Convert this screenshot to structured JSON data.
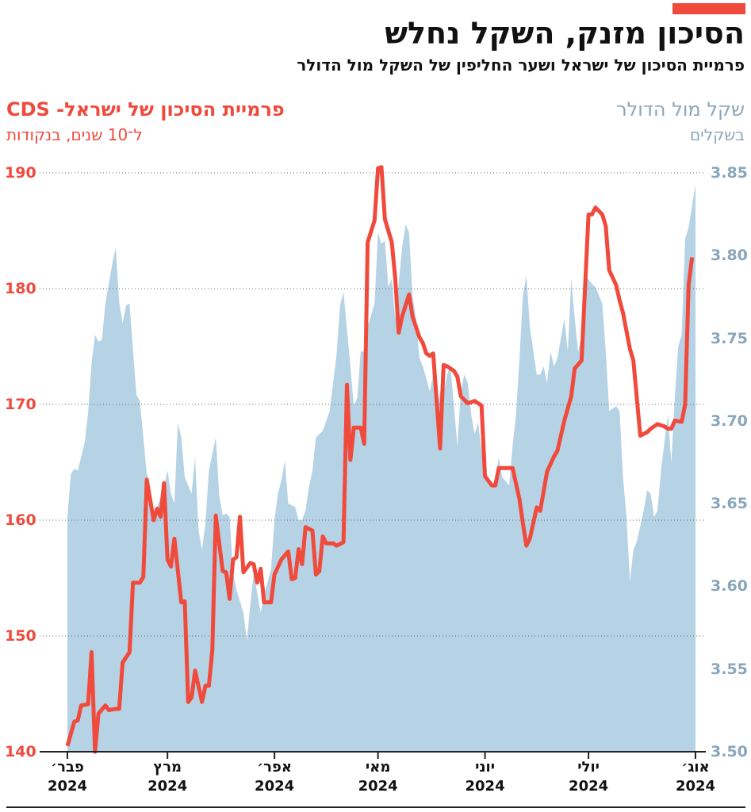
{
  "chart_data": {
    "type": "line",
    "title": "הסיכון מזנק, השקל נחלש",
    "subtitle": "פרמיית הסיכון של ישראל ושער החליפין של השקל מול הדולר",
    "ylabel": "ל־10 שנים, בנקודות",
    "y2label": "בשקלים",
    "xlim": [
      0,
      182
    ],
    "xticks": [
      {
        "value": 0,
        "label": "פבר׳ 2024"
      },
      {
        "value": 29,
        "label": "מרץ 2024"
      },
      {
        "value": 60,
        "label": "אפר׳ 2024"
      },
      {
        "value": 90,
        "label": "מאי 2024"
      },
      {
        "value": 121,
        "label": "יוני 2024"
      },
      {
        "value": 151,
        "label": "יולי 2024"
      },
      {
        "value": 182,
        "label": "אוג׳ 2024"
      }
    ],
    "ylim": [
      140,
      190
    ],
    "yticks": [
      140,
      150,
      160,
      170,
      180,
      190
    ],
    "y2lim": [
      3.5,
      3.85
    ],
    "y2ticks": [
      {
        "value": 3.5,
        "label": "3.50"
      },
      3.55,
      {
        "value": 3.6,
        "label": "3.60"
      },
      3.65,
      {
        "value": 3.7,
        "label": "3.70"
      },
      3.75,
      {
        "value": 3.8,
        "label": "3.80"
      },
      3.85
    ],
    "grid": true,
    "series": [
      {
        "name": "שקל מול הדולר",
        "type": "area",
        "axis": "y2",
        "color": "#b5d3e5",
        "label_color": "#8aa6ba",
        "x": [
          0,
          1,
          2,
          3,
          5,
          6,
          7,
          8,
          9,
          10,
          11,
          13,
          14,
          15,
          16,
          17,
          18,
          20,
          21,
          22,
          23,
          24,
          25,
          26,
          28,
          29,
          30,
          31,
          32,
          33,
          34,
          36,
          37,
          38,
          39,
          40,
          41,
          43,
          44,
          45,
          46,
          47,
          48,
          49,
          51,
          52,
          53,
          54,
          55,
          56,
          57,
          59,
          60,
          61,
          62,
          63,
          64,
          66,
          67,
          68,
          69,
          70,
          71,
          72,
          74,
          75,
          76,
          77,
          78,
          79,
          80,
          82,
          83,
          84,
          85,
          86,
          87,
          89,
          90,
          91,
          92,
          93,
          94,
          95,
          97,
          98,
          99,
          100,
          101,
          102,
          103,
          105,
          106,
          107,
          108,
          109,
          110,
          111,
          113,
          114,
          115,
          116,
          117,
          118,
          119,
          121,
          122,
          123,
          124,
          125,
          126,
          128,
          129,
          130,
          131,
          132,
          133,
          134,
          136,
          137,
          138,
          139,
          140,
          141,
          142,
          144,
          145,
          146,
          147,
          148,
          149,
          150,
          152,
          153,
          154,
          155,
          156,
          157,
          159,
          160,
          161,
          162,
          163,
          164,
          165,
          167,
          168,
          169,
          170,
          171,
          172,
          174,
          175,
          176,
          177,
          178,
          179,
          180,
          182
        ],
        "values": [
          3.642,
          3.668,
          3.671,
          3.67,
          3.687,
          3.705,
          3.735,
          3.752,
          3.748,
          3.749,
          3.771,
          3.795,
          3.805,
          3.772,
          3.759,
          3.77,
          3.771,
          3.716,
          3.712,
          3.69,
          3.668,
          3.66,
          3.639,
          3.648,
          3.66,
          3.67,
          3.656,
          3.65,
          3.699,
          3.69,
          3.666,
          3.656,
          3.678,
          3.634,
          3.622,
          3.638,
          3.67,
          3.69,
          3.655,
          3.643,
          3.644,
          3.642,
          3.608,
          3.598,
          3.584,
          3.567,
          3.589,
          3.608,
          3.596,
          3.584,
          3.595,
          3.61,
          3.64,
          3.656,
          3.664,
          3.676,
          3.65,
          3.648,
          3.64,
          3.64,
          3.646,
          3.66,
          3.67,
          3.69,
          3.694,
          3.7,
          3.706,
          3.723,
          3.74,
          3.77,
          3.778,
          3.733,
          3.709,
          3.714,
          3.742,
          3.742,
          3.757,
          3.771,
          3.814,
          3.807,
          3.809,
          3.781,
          3.786,
          3.762,
          3.805,
          3.819,
          3.814,
          3.776,
          3.762,
          3.738,
          3.733,
          3.718,
          3.728,
          3.704,
          3.718,
          3.716,
          3.728,
          3.733,
          3.685,
          3.718,
          3.728,
          3.723,
          3.704,
          3.692,
          3.699,
          3.666,
          3.666,
          3.661,
          3.666,
          3.678,
          3.666,
          3.661,
          3.685,
          3.704,
          3.738,
          3.776,
          3.788,
          3.757,
          3.728,
          3.728,
          3.733,
          3.723,
          3.742,
          3.733,
          3.738,
          3.762,
          3.742,
          3.786,
          3.762,
          3.742,
          3.752,
          3.788,
          3.783,
          3.781,
          3.776,
          3.771,
          3.742,
          3.706,
          3.709,
          3.706,
          3.666,
          3.642,
          3.603,
          3.622,
          3.627,
          3.646,
          3.658,
          3.656,
          3.642,
          3.646,
          3.67,
          3.704,
          3.675,
          3.714,
          3.745,
          3.752,
          3.81,
          3.817,
          3.843
        ]
      },
      {
        "name": "פרמיית הסיכון של ישראל- CDS",
        "type": "line",
        "axis": "y",
        "color": "#f04a3c",
        "label_color": "#f04a3c",
        "x": [
          0,
          2,
          3,
          4,
          6,
          7,
          8,
          9,
          11,
          12,
          14,
          15,
          16,
          18,
          19,
          21,
          22,
          23,
          25,
          26,
          27,
          28,
          29,
          30,
          31,
          33,
          34,
          35,
          36,
          37,
          39,
          40,
          41,
          42,
          43,
          45,
          46,
          47,
          48,
          49,
          50,
          51,
          53,
          54,
          55,
          56,
          57,
          59,
          60,
          62,
          64,
          65,
          66,
          67,
          68,
          69,
          71,
          72,
          73,
          74,
          75,
          77,
          78,
          80,
          81,
          82,
          83,
          85,
          86,
          87,
          89,
          90,
          91,
          92,
          94,
          95,
          96,
          97,
          99,
          100,
          102,
          103,
          104,
          105,
          106,
          108,
          109,
          110,
          112,
          113,
          114,
          116,
          118,
          120,
          121,
          123,
          124,
          125,
          128,
          129,
          131,
          132,
          133,
          134,
          136,
          137,
          139,
          141,
          142,
          144,
          146,
          147,
          149,
          151,
          152,
          153,
          155,
          156,
          157,
          159,
          160,
          161,
          163,
          164,
          166,
          168,
          169,
          171,
          173,
          174,
          175,
          176,
          178,
          179,
          180,
          181
        ],
        "values": [
          140.5,
          142.6,
          142.7,
          144,
          144.1,
          148.6,
          140,
          143.3,
          144,
          143.6,
          143.7,
          143.7,
          147.7,
          148.6,
          154.6,
          154.6,
          155.1,
          163.5,
          160,
          161,
          160.3,
          163.2,
          156.6,
          156,
          158.4,
          152.9,
          153,
          144.3,
          144.7,
          147,
          144.3,
          145.7,
          145.7,
          148.8,
          160.4,
          155.6,
          155.5,
          153.2,
          156.6,
          156.8,
          160.3,
          155.5,
          156.3,
          156.2,
          154.6,
          155.8,
          152.9,
          152.9,
          155.3,
          156.6,
          157.3,
          154.9,
          155,
          157.5,
          156.2,
          159.4,
          159.1,
          155.3,
          155.6,
          158.6,
          158,
          158,
          157.8,
          158.1,
          171.7,
          165.2,
          168,
          168,
          166.6,
          184,
          185.9,
          190.4,
          190.5,
          186,
          184,
          180.9,
          176.2,
          177.6,
          179.5,
          177.6,
          175.8,
          175.3,
          174.4,
          174.2,
          174.4,
          166.2,
          173.4,
          173.3,
          172.9,
          172.4,
          170.7,
          170.1,
          170.3,
          169.9,
          163.8,
          163,
          163,
          164.5,
          164.5,
          164.5,
          161.8,
          159.7,
          157.8,
          158.4,
          161.1,
          160.8,
          164.2,
          165.5,
          166,
          168.6,
          170.7,
          173.1,
          173.8,
          186.4,
          186.4,
          187,
          186.4,
          185.4,
          181.6,
          180.3,
          179,
          177.9,
          174.8,
          173.8,
          167.3,
          167.6,
          167.9,
          168.3,
          168.1,
          167.9,
          167.9,
          168.6,
          168.5,
          170,
          180.3,
          182.7
        ]
      }
    ]
  }
}
